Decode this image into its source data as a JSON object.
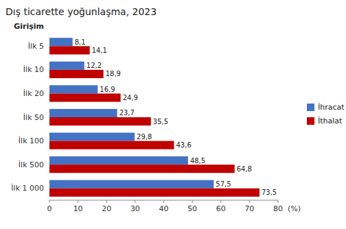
{
  "chart_data": {
    "type": "bar",
    "orientation": "horizontal",
    "title": "Dış ticarette yoğunlaşma, 2023",
    "ylabel": "Girişim",
    "xlabel": "(%)",
    "categories": [
      "İlk 5",
      "İlk 10",
      "İlk 20",
      "İlk 50",
      "İlk 100",
      "İlk 500",
      "İlk 1 000"
    ],
    "series": [
      {
        "name": "İhracat",
        "color": "#4472C4",
        "values": [
          8.1,
          12.2,
          16.9,
          23.7,
          29.8,
          48.5,
          57.5
        ],
        "value_labels": [
          "8,1",
          "12,2",
          "16,9",
          "23,7",
          "29,8",
          "48,5",
          "57,5"
        ]
      },
      {
        "name": "İthalat",
        "color": "#C00000",
        "values": [
          14.1,
          18.9,
          24.9,
          35.5,
          43.6,
          64.8,
          73.5
        ],
        "value_labels": [
          "14,1",
          "18,9",
          "24,9",
          "35,5",
          "43,6",
          "64,8",
          "73,5"
        ]
      }
    ],
    "xlim": [
      0,
      80
    ],
    "xticks": [
      0,
      10,
      20,
      30,
      40,
      50,
      60,
      70,
      80
    ],
    "grid": false,
    "legend": "right",
    "data_labels": true
  }
}
